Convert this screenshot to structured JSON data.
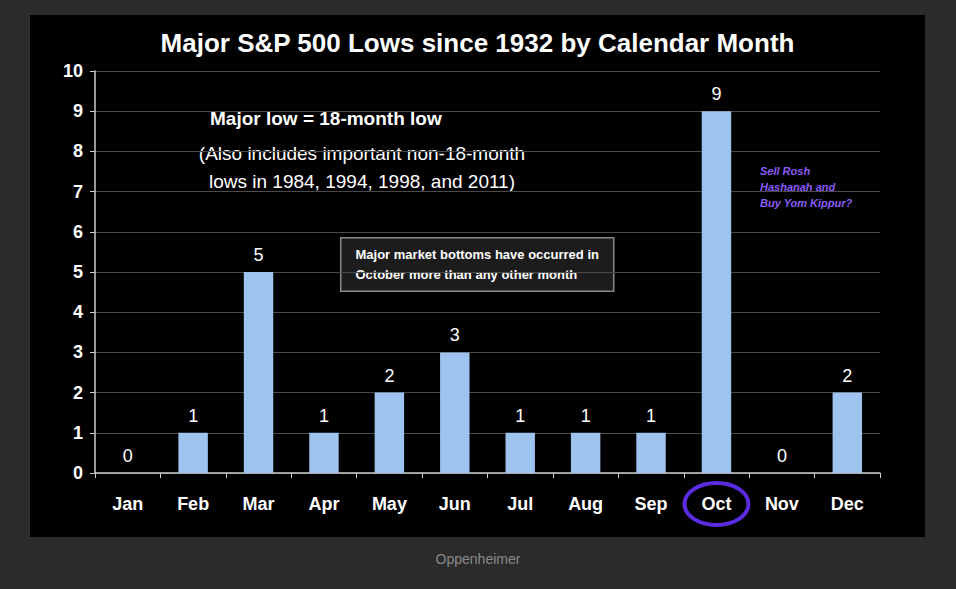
{
  "chart_data": {
    "type": "bar",
    "title": "Major S&P 500 Lows since 1932 by Calendar Month",
    "categories": [
      "Jan",
      "Feb",
      "Mar",
      "Apr",
      "May",
      "Jun",
      "Jul",
      "Aug",
      "Sep",
      "Oct",
      "Nov",
      "Dec"
    ],
    "values": [
      0,
      1,
      5,
      1,
      2,
      3,
      1,
      1,
      1,
      9,
      0,
      2
    ],
    "color": "#9dc3ee",
    "ylim": [
      0,
      10
    ],
    "yticks": [
      0,
      1,
      2,
      3,
      4,
      5,
      6,
      7,
      8,
      9,
      10
    ],
    "grid": true,
    "data_labels": true,
    "annotations": [
      "Major low = 18-month low",
      "(Also includes important non-18-month\nlows in 1984, 1994, 1998, and 2011)",
      "Major market bottoms have occurred in\nOctober more than any other month",
      "Sell Rosh\nHashanah and\nBuy Yom Kippur?"
    ],
    "source": "Oppenheimer"
  }
}
